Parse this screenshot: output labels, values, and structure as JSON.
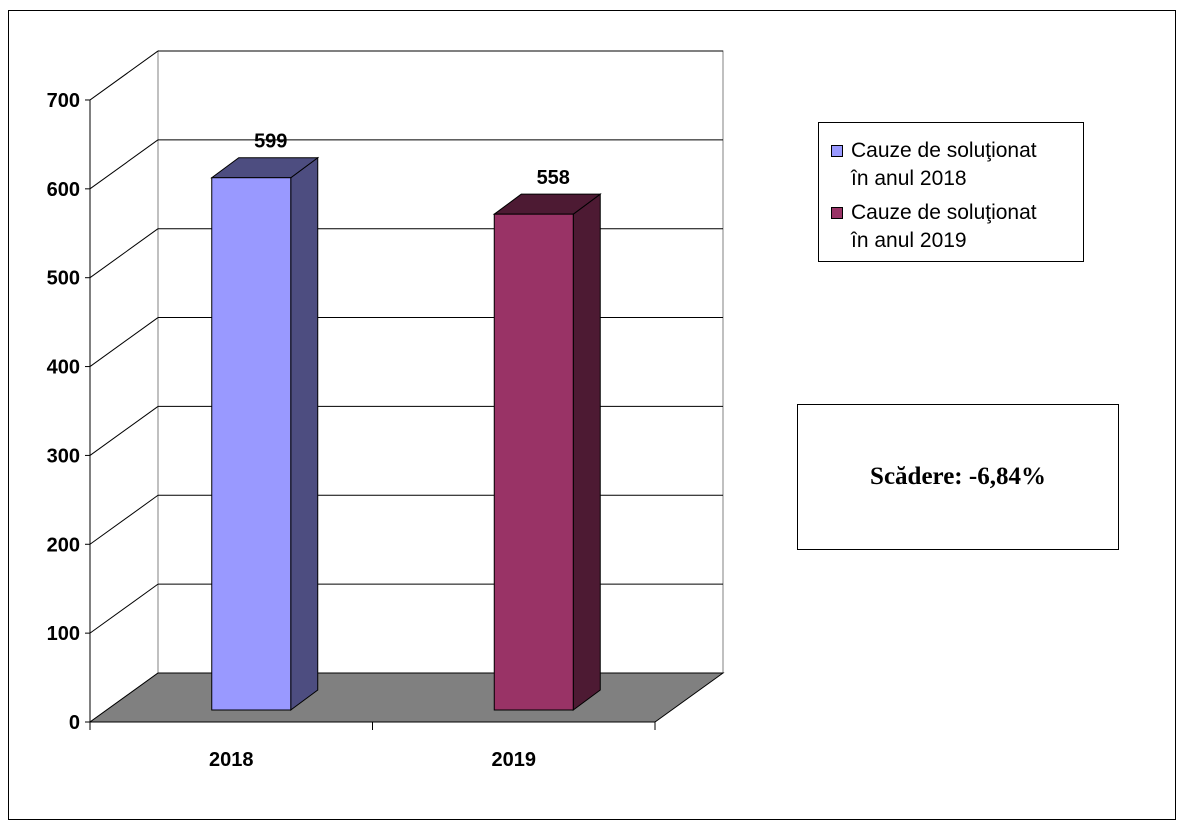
{
  "chart_data": {
    "type": "bar",
    "categories": [
      "2018",
      "2019"
    ],
    "values": [
      599,
      558
    ],
    "data_labels": [
      "599",
      "558"
    ],
    "colors": [
      "#9999ff",
      "#993366"
    ],
    "side_colors": [
      "#4d4d80",
      "#4d1a33"
    ],
    "floor_color": "#808080",
    "ylim": [
      0,
      700
    ],
    "yticks": [
      "0",
      "100",
      "200",
      "300",
      "400",
      "500",
      "600",
      "700"
    ],
    "grid": true,
    "three_d": true,
    "title": "",
    "xlabel": "",
    "ylabel": "",
    "legend": {
      "placement": "right",
      "entries": [
        {
          "line1": "Cauze de soluţionat",
          "line2": "în anul 2018"
        },
        {
          "line1": "Cauze de soluţionat",
          "line2": "în anul 2019"
        }
      ]
    }
  },
  "note": {
    "text": "Scădere: -6,84%"
  }
}
